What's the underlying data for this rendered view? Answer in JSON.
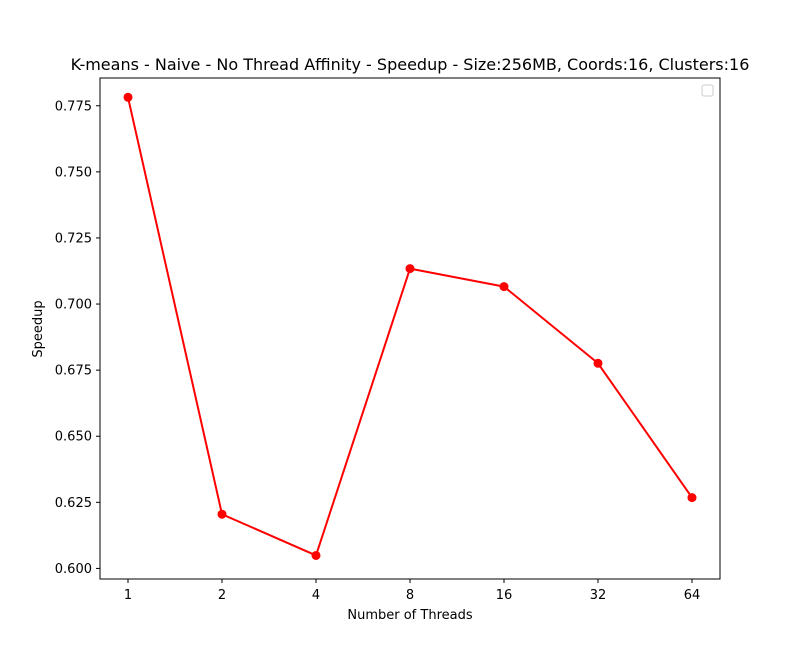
{
  "chart_data": {
    "type": "line",
    "title": "K-means - Naive - No Thread Affinity - Speedup - Size:256MB, Coords:16, Clusters:16",
    "xlabel": "Number of Threads",
    "ylabel": "Speedup",
    "categories": [
      "1",
      "2",
      "4",
      "8",
      "16",
      "32",
      "64"
    ],
    "series": [
      {
        "values": [
          0.7782,
          0.6205,
          0.6049,
          0.7134,
          0.7066,
          0.6776,
          0.6268
        ],
        "color": "#ff0000",
        "marker": "circle"
      }
    ],
    "ylim": [
      0.596,
      0.7855
    ],
    "yticks": [
      0.6,
      0.625,
      0.65,
      0.675,
      0.7,
      0.725,
      0.75,
      0.775
    ],
    "ytick_labels": [
      "0.600",
      "0.625",
      "0.650",
      "0.675",
      "0.700",
      "0.725",
      "0.750",
      "0.775"
    ],
    "grid": false,
    "legend": {
      "placement": "upper-right",
      "entries": []
    }
  }
}
